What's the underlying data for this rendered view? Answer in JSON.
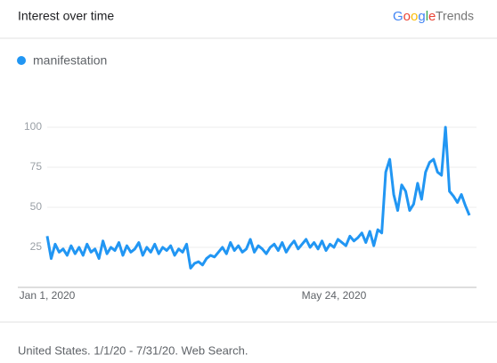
{
  "header": {
    "title": "Interest over time",
    "brand_google": "Google",
    "brand_trends": "Trends"
  },
  "footer": "United States. 1/1/20 - 7/31/20. Web Search.",
  "chart_data": {
    "type": "line",
    "categories": [
      "Jan 1, 2020",
      null,
      null,
      null,
      null,
      null,
      null,
      null,
      null,
      null,
      null,
      null,
      null,
      null,
      null,
      null,
      null,
      null,
      null,
      null,
      null,
      null,
      null,
      null,
      null,
      null,
      null,
      null,
      null,
      null,
      null,
      null,
      null,
      null,
      null,
      null,
      null,
      null,
      null,
      null,
      null,
      null,
      null,
      null,
      null,
      null,
      null,
      null,
      null,
      null,
      null,
      null,
      null,
      null,
      null,
      null,
      null,
      null,
      null,
      null,
      null,
      null,
      null,
      null,
      null,
      null,
      null,
      null,
      null,
      null,
      null,
      null,
      "May 24, 2020",
      null,
      null,
      null,
      null,
      null,
      null,
      null,
      null,
      null,
      null,
      null,
      null,
      null,
      null,
      null,
      null,
      null,
      null,
      null,
      null,
      null,
      null,
      null,
      null,
      null,
      null,
      null,
      null,
      null,
      null,
      null,
      null,
      null,
      null
    ],
    "series": [
      {
        "name": "manifestation",
        "color": "#2196f3",
        "values": [
          32,
          18,
          27,
          22,
          24,
          20,
          26,
          21,
          25,
          20,
          27,
          22,
          24,
          18,
          29,
          21,
          25,
          23,
          28,
          20,
          26,
          22,
          24,
          28,
          20,
          25,
          22,
          27,
          21,
          25,
          23,
          26,
          20,
          24,
          22,
          27,
          12,
          15,
          16,
          14,
          18,
          20,
          19,
          22,
          25,
          21,
          28,
          23,
          26,
          22,
          24,
          30,
          22,
          26,
          24,
          21,
          25,
          27,
          23,
          28,
          22,
          26,
          29,
          24,
          27,
          30,
          25,
          28,
          24,
          29,
          23,
          27,
          25,
          30,
          28,
          26,
          32,
          29,
          31,
          34,
          28,
          35,
          26,
          36,
          34,
          72,
          80,
          58,
          48,
          64,
          60,
          48,
          52,
          65,
          55,
          72,
          78,
          80,
          72,
          70,
          100,
          60,
          57,
          53,
          58,
          51,
          45
        ]
      }
    ],
    "ylim": [
      0,
      100
    ],
    "yticks": [
      25,
      50,
      75,
      100
    ],
    "grid": true
  }
}
